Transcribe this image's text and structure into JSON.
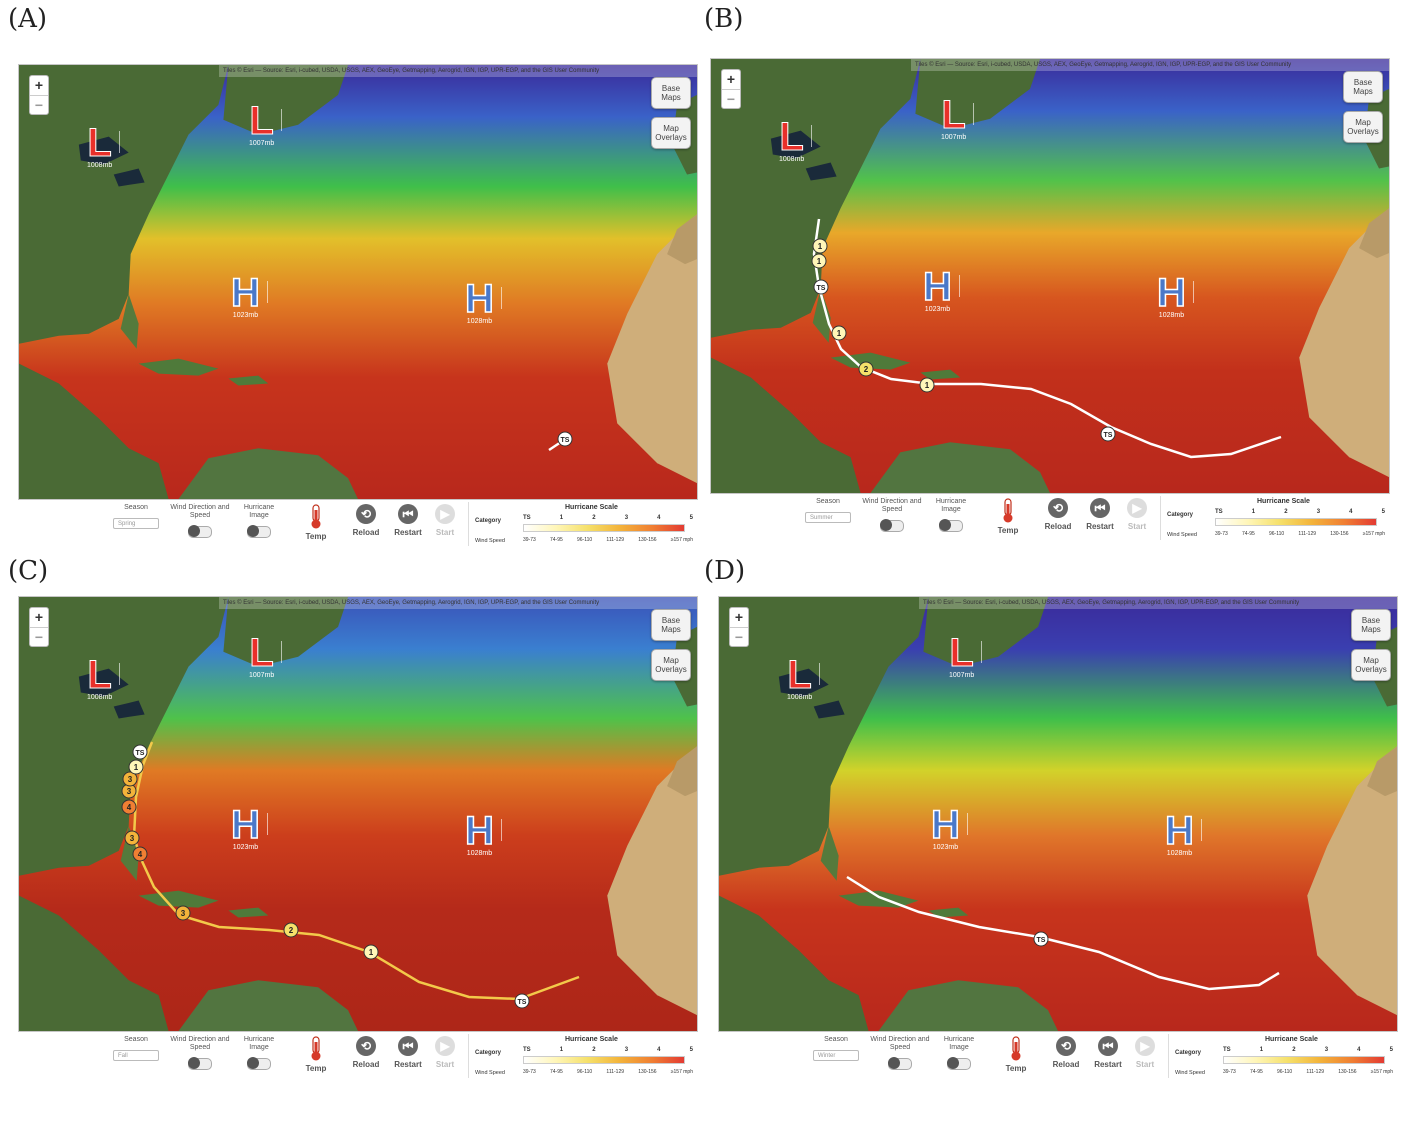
{
  "panels": [
    {
      "label": "(A)",
      "season": "Spring",
      "lows": [
        {
          "symbol": "L",
          "pressure": "1008mb"
        },
        {
          "symbol": "L",
          "pressure": "1007mb"
        }
      ],
      "highs": [
        {
          "symbol": "H",
          "pressure": "1023mb"
        },
        {
          "symbol": "H",
          "pressure": "1028mb"
        }
      ],
      "track_markers": [
        "TS"
      ]
    },
    {
      "label": "(B)",
      "season": "Summer",
      "lows": [
        {
          "symbol": "L",
          "pressure": "1008mb"
        },
        {
          "symbol": "L",
          "pressure": "1007mb"
        }
      ],
      "highs": [
        {
          "symbol": "H",
          "pressure": "1023mb"
        },
        {
          "symbol": "H",
          "pressure": "1028mb"
        }
      ],
      "track_markers": [
        "TS",
        "1",
        "2",
        "1",
        "TS",
        "1",
        "1"
      ]
    },
    {
      "label": "(C)",
      "season": "Fall",
      "lows": [
        {
          "symbol": "L",
          "pressure": "1008mb"
        },
        {
          "symbol": "L",
          "pressure": "1007mb"
        }
      ],
      "highs": [
        {
          "symbol": "H",
          "pressure": "1023mb"
        },
        {
          "symbol": "H",
          "pressure": "1028mb"
        }
      ],
      "track_markers": [
        "TS",
        "1",
        "2",
        "3",
        "4",
        "3",
        "4",
        "3",
        "3",
        "1",
        "TS"
      ]
    },
    {
      "label": "(D)",
      "season": "Winter",
      "lows": [
        {
          "symbol": "L",
          "pressure": "1008mb"
        },
        {
          "symbol": "L",
          "pressure": "1007mb"
        }
      ],
      "highs": [
        {
          "symbol": "H",
          "pressure": "1023mb"
        },
        {
          "symbol": "H",
          "pressure": "1028mb"
        }
      ],
      "track_markers": [
        "TS"
      ]
    }
  ],
  "map_controls": {
    "zoom_in": "+",
    "zoom_out": "−",
    "base_maps": "Base Maps",
    "map_overlays": "Map Overlays",
    "attribution": "Tiles © Esri — Source: Esri, i-cubed, USDA, USGS, AEX, GeoEye, Getmapping, Aerogrid, IGN, IGP, UPR-EGP, and the GIS User Community"
  },
  "toolbar": {
    "season_label": "Season",
    "wind_label": "Wind Direction and Speed",
    "hurricane_image_label": "Hurricane Image",
    "temp_label": "Temp",
    "reload_label": "Reload",
    "restart_label": "Restart",
    "start_label": "Start"
  },
  "hurricane_scale": {
    "title": "Hurricane Scale",
    "category_label": "Category",
    "wind_speed_label": "Wind Speed",
    "categories": [
      "TS",
      "1",
      "2",
      "3",
      "4",
      "5"
    ],
    "speeds": [
      "39-73",
      "74-95",
      "96-110",
      "111-129",
      "130-156",
      "≥157 mph"
    ]
  },
  "colors": {
    "low": "#e8302a",
    "high": "#4a78c8",
    "ocean_warm": "#c0301b",
    "ocean_cold": "#3a52b8",
    "land": "#4a6a35"
  }
}
